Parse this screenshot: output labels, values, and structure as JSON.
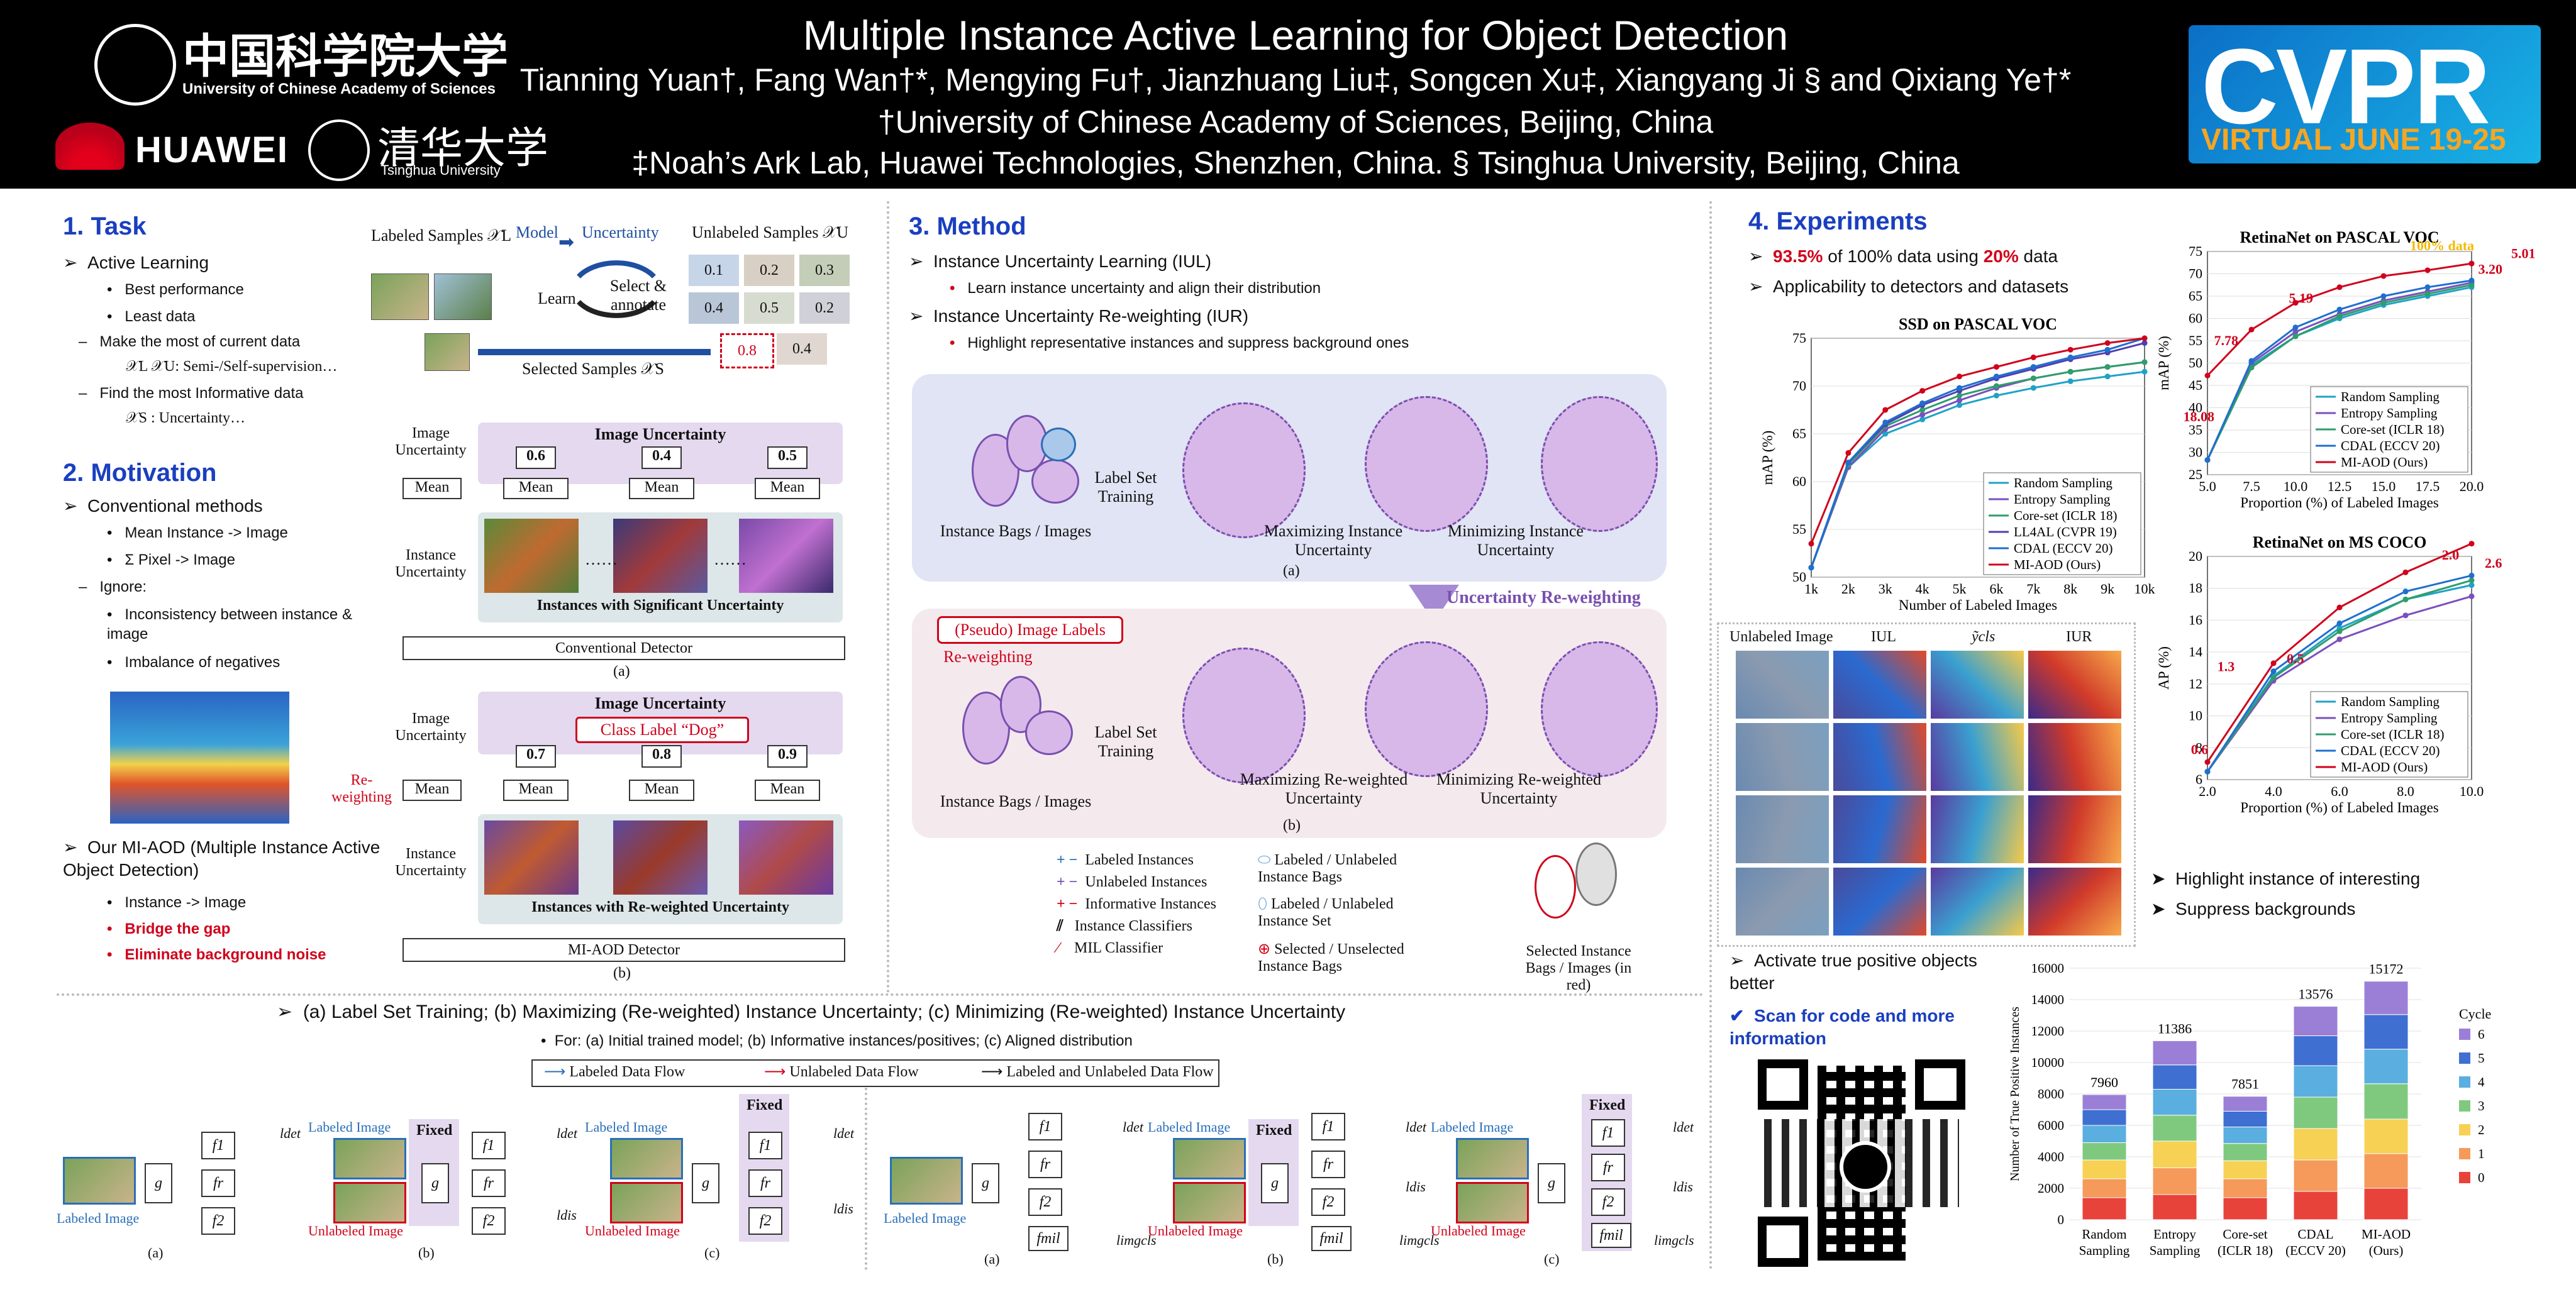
{
  "header": {
    "title": "Multiple Instance Active Learning for Object Detection",
    "authors": "Tianning Yuan†, Fang Wan†*, Mengying Fu†, Jianzhuang Liu‡, Songcen Xu‡, Xiangyang Ji § and Qixiang Ye†*",
    "affil1": "†University of Chinese Academy of Sciences, Beijing, China",
    "affil2": "‡Noah’s Ark Lab, Huawei Technologies, Shenzhen, China. § Tsinghua University, Beijing, China",
    "logo_ucas_cn": "中国科学院大学",
    "logo_ucas_en": "University of Chinese Academy of Sciences",
    "logo_huawei": "HUAWEI",
    "logo_tsinghua_cn": "清华大学",
    "logo_tsinghua_en": "Tsinghua University",
    "cvpr_main": "CVPR",
    "cvpr_sub": "VIRTUAL JUNE 19-25"
  },
  "task": {
    "heading": "1. Task",
    "items": [
      "Active Learning",
      "Best performance",
      "Least data",
      "Make the most of current data",
      "𝒳L 𝒳U: Semi-/Self-supervision…",
      "Find the most Informative data",
      "𝒳S : Uncertainty…"
    ],
    "diagram": {
      "labeled": "Labeled Samples 𝒳L",
      "model": "Model",
      "uncertainty": "Uncertainty",
      "unlabeled": "Unlabeled Samples 𝒳U",
      "learn": "Learn",
      "select": "Select & annotate",
      "selected": "Selected Samples 𝒳S",
      "scores": [
        "0.1",
        "0.2",
        "0.3",
        "0.4",
        "0.5",
        "0.2",
        "0.8",
        "0.4"
      ]
    }
  },
  "motivation": {
    "heading": "2. Motivation",
    "items": [
      "Conventional methods",
      "Mean Instance -> Image",
      "Σ Pixel -> Image",
      "Ignore:",
      "Inconsistency between instance & image",
      "Imbalance of negatives"
    ],
    "our": "Our MI-AOD (Multiple Instance Active Object Detection)",
    "our_items": [
      "Instance -> Image",
      "Bridge the gap",
      "Eliminate background noise"
    ],
    "diag_a": {
      "image_unc": "Image Uncertainty",
      "vals": [
        "0.6",
        "0.4",
        "0.5"
      ],
      "mean": "Mean",
      "inst_unc": "Instance Uncertainty",
      "band": "Instances with Significant Uncertainty",
      "detector": "Conventional Detector",
      "caption": "(a)",
      "dots": "……"
    },
    "diag_b": {
      "image_unc": "Image Uncertainty",
      "class_label": "Class Label “Dog”",
      "vals": [
        "0.7",
        "0.8",
        "0.9"
      ],
      "mean": "Mean",
      "reweight": "Re-weighting",
      "inst_unc": "Instance Uncertainty",
      "band": "Instances with Re-weighted Uncertainty",
      "detector": "MI-AOD Detector",
      "caption": "(b)"
    }
  },
  "method": {
    "heading": "3. Method",
    "iul": "Instance Uncertainty Learning (IUL)",
    "iul_sub": "Learn instance uncertainty and align their distribution",
    "iur": "Instance Uncertainty Re-weighting (IUR)",
    "iur_sub": "Highlight representative instances and suppress background ones",
    "panel_a": {
      "bags": "Instance Bags / Images",
      "lst": "Label Set Training",
      "max": "Maximizing Instance Uncertainty",
      "min": "Minimizing Instance Uncertainty",
      "cap": "(a)"
    },
    "arrow": "Uncertainty Re-weighting",
    "panel_b": {
      "pseudo": "(Pseudo) Image Labels",
      "rew": "Re-weighting",
      "bags": "Instance Bags / Images",
      "lst": "Label Set Training",
      "max": "Maximizing Re-weighted Uncertainty",
      "min": "Minimizing Re-weighted Uncertainty",
      "cap": "(b)"
    },
    "legend": [
      "Labeled Instances",
      "Unlabeled Instances",
      "Informative Instances",
      "Instance Classifiers",
      "MIL Classifier",
      "Labeled / Unlabeled Instance Bags",
      "Labeled / Unlabeled Instance Set",
      "Selected / Unselected Instance Bags"
    ],
    "selected_bags": "Selected Instance Bags / Images (in red)",
    "caption": "(a) Label Set Training; (b) Maximizing (Re-weighted) Instance Uncertainty; (c) Minimizing (Re-weighted) Instance Uncertainty",
    "caption_sub": "For: (a) Initial trained model; (b) Informative instances/positives; (c) Aligned distribution",
    "flow_legend": [
      "Labeled Data Flow",
      "Unlabeled Data Flow",
      "Labeled and Unlabeled Data Flow"
    ],
    "arch_labels": {
      "labeled": "Labeled Image",
      "unlabeled": "Unlabeled Image",
      "fixed": "Fixed",
      "g": "g",
      "f1": "f1",
      "f2": "fr",
      "f3": "f2",
      "fmil": "fmil",
      "ldet": "ldet",
      "ldis": "ldis",
      "limgcls": "limgcls",
      "caps": [
        "(a)",
        "(b)",
        "(c)",
        "(a)",
        "(b)",
        "(c)"
      ]
    }
  },
  "experiments": {
    "heading": "4. Experiments",
    "bullet1_a": "93.5%",
    "bullet1_b": " of 100% data using ",
    "bullet1_c": "20%",
    "bullet1_d": " data",
    "bullet2": "Applicability to detectors and datasets",
    "vis_headers": [
      "Unlabeled Image",
      "IUL",
      "ỹcls",
      "IUR"
    ],
    "vis_notes": [
      "Highlight instance of interesting",
      "Suppress backgrounds"
    ],
    "activate": "Activate true positive objects better",
    "scan": "Scan for code and more information"
  },
  "chart_data": [
    {
      "type": "line",
      "title": "SSD on PASCAL VOC",
      "xlabel": "Number of Labeled Images",
      "ylabel": "mAP (%)",
      "categories": [
        "1k",
        "2k",
        "3k",
        "4k",
        "5k",
        "6k",
        "7k",
        "8k",
        "9k",
        "10k"
      ],
      "ylim": [
        50,
        75
      ],
      "yticks": [
        "50",
        "55",
        "60",
        "65",
        "70",
        "75"
      ],
      "legend": "bottom-right",
      "series": [
        {
          "name": "Random Sampling",
          "color": "#1fa2c7",
          "values": [
            51,
            61.5,
            65,
            66.5,
            68,
            69,
            69.8,
            70.5,
            71,
            71.5
          ]
        },
        {
          "name": "Entropy Sampling",
          "color": "#7b4fbf",
          "values": [
            51,
            61.5,
            65.5,
            67,
            68.5,
            69.8,
            70.8,
            71.5,
            72,
            72.5
          ]
        },
        {
          "name": "Core-set (ICLR 18)",
          "color": "#2e9e6a",
          "values": [
            51,
            61.8,
            65.8,
            67.5,
            69,
            70,
            70.8,
            71.5,
            72,
            72.5
          ]
        },
        {
          "name": "LL4AL (CVPR 19)",
          "color": "#4f3fb0",
          "values": [
            51,
            62,
            66,
            68,
            69.5,
            70.8,
            71.8,
            72.8,
            73.5,
            74.5
          ]
        },
        {
          "name": "CDAL (ECCV 20)",
          "color": "#1f6fcf",
          "values": [
            51,
            62,
            66.2,
            68.2,
            69.8,
            71,
            72,
            73,
            73.8,
            75
          ]
        },
        {
          "name": "MI-AOD (Ours)",
          "color": "#d0021b",
          "values": [
            53.5,
            63,
            67.5,
            69.5,
            71,
            72,
            73,
            73.8,
            74.5,
            75
          ]
        }
      ]
    },
    {
      "type": "line",
      "title": "RetinaNet on PASCAL VOC",
      "xlabel": "Proportion (%) of Labeled Images",
      "ylabel": "mAP (%)",
      "categories": [
        "5.0",
        "7.5",
        "10.0",
        "12.5",
        "15.0",
        "17.5",
        "20.0"
      ],
      "ylim": [
        25,
        75
      ],
      "yticks": [
        "25",
        "30",
        "35",
        "40",
        "45",
        "50",
        "55",
        "60",
        "65",
        "70",
        "75"
      ],
      "legend": "bottom-right",
      "annotations": [
        "100% data",
        "18.08",
        "7.78",
        "5.19",
        "3.20",
        "5.01"
      ],
      "series": [
        {
          "name": "Random Sampling",
          "color": "#1fa2c7",
          "values": [
            28.3,
            49.5,
            56,
            60,
            63,
            65,
            67
          ]
        },
        {
          "name": "Entropy Sampling",
          "color": "#7b4fbf",
          "values": [
            28.3,
            50,
            57,
            61,
            64,
            66,
            68
          ]
        },
        {
          "name": "Core-set (ICLR 18)",
          "color": "#2e9e6a",
          "values": [
            28.3,
            49,
            56,
            60.5,
            63.5,
            65.5,
            67.5
          ]
        },
        {
          "name": "CDAL (ECCV 20)",
          "color": "#1f6fcf",
          "values": [
            28.3,
            50.5,
            58,
            62,
            65,
            67,
            68.5
          ]
        },
        {
          "name": "MI-AOD (Ours)",
          "color": "#d0021b",
          "values": [
            47.2,
            57.5,
            63.5,
            67,
            69.5,
            70.8,
            72.3
          ]
        }
      ]
    },
    {
      "type": "line",
      "title": "RetinaNet on MS COCO",
      "xlabel": "Proportion (%) of Labeled Images",
      "ylabel": "AP (%)",
      "categories": [
        "2.0",
        "4.0",
        "6.0",
        "8.0",
        "10.0"
      ],
      "ylim": [
        6,
        20
      ],
      "yticks": [
        "6",
        "8",
        "10",
        "12",
        "14",
        "16",
        "18",
        "20"
      ],
      "legend": "bottom-right",
      "annotations": [
        "0.6",
        "1.3",
        "0.5",
        "2.0",
        "2.6"
      ],
      "series": [
        {
          "name": "Random Sampling",
          "color": "#1fa2c7",
          "values": [
            6.5,
            12.5,
            15.5,
            17.3,
            18.2
          ]
        },
        {
          "name": "Entropy Sampling",
          "color": "#7b4fbf",
          "values": [
            6.5,
            12.2,
            14.8,
            16.3,
            17.5
          ]
        },
        {
          "name": "Core-set (ICLR 18)",
          "color": "#2e9e6a",
          "values": [
            6.5,
            12.4,
            15.3,
            17.3,
            18.5
          ]
        },
        {
          "name": "CDAL (ECCV 20)",
          "color": "#1f6fcf",
          "values": [
            6.5,
            12.8,
            15.8,
            17.8,
            18.8
          ]
        },
        {
          "name": "MI-AOD (Ours)",
          "color": "#d0021b",
          "values": [
            7.1,
            13.3,
            16.8,
            19,
            20.8
          ]
        }
      ]
    },
    {
      "type": "bar",
      "stacked": true,
      "ylabel": "Number of True Positive Instances",
      "categories": [
        "Random Sampling",
        "Entropy Sampling",
        "Core-set (ICLR 18)",
        "CDAL (ECCV 20)",
        "MI-AOD (Ours)"
      ],
      "totals": [
        7960,
        11386,
        7851,
        13576,
        15172
      ],
      "ylim": [
        0,
        16000
      ],
      "yticks": [
        "0",
        "2000",
        "4000",
        "6000",
        "8000",
        "10000",
        "12000",
        "14000",
        "16000"
      ],
      "legend_title": "Cycle",
      "cycles": [
        "0",
        "1",
        "2",
        "3",
        "4",
        "5",
        "6"
      ],
      "cycle_colors": [
        "#e8433b",
        "#f59a5a",
        "#f7d154",
        "#7fc97f",
        "#5aaee0",
        "#3f6fd1",
        "#9b7fd6"
      ],
      "segments": [
        [
          1400,
          1200,
          1200,
          1100,
          1100,
          1000,
          960
        ],
        [
          1600,
          1700,
          1700,
          1650,
          1650,
          1550,
          1536
        ],
        [
          1400,
          1200,
          1150,
          1100,
          1050,
          1000,
          951
        ],
        [
          1800,
          2000,
          2000,
          2000,
          2000,
          1900,
          1876
        ],
        [
          2000,
          2200,
          2200,
          2250,
          2200,
          2200,
          2122
        ]
      ]
    }
  ]
}
